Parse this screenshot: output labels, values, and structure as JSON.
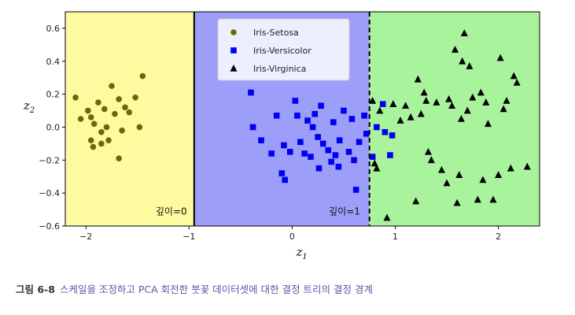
{
  "chart_data": {
    "type": "scatter",
    "xlabel": "z",
    "xlabel_sub": "1",
    "ylabel": "z",
    "ylabel_sub": "2",
    "xlim": [
      -2.2,
      2.4
    ],
    "ylim": [
      -0.6,
      0.7
    ],
    "x_ticks": [
      -2,
      -1,
      0,
      1,
      2
    ],
    "x_tick_labels": [
      "−2",
      "−1",
      "0",
      "1",
      "2"
    ],
    "y_ticks": [
      -0.6,
      -0.4,
      -0.2,
      0.0,
      0.2,
      0.4,
      0.6
    ],
    "y_tick_labels": [
      "−0.6",
      "−0.4",
      "−0.2",
      "0.0",
      "0.2",
      "0.4",
      "0.6"
    ],
    "regions": [
      {
        "x_from": -2.2,
        "x_to": -0.95,
        "color": "#fefa9f"
      },
      {
        "x_from": -0.95,
        "x_to": 0.75,
        "color": "#9d9efa"
      },
      {
        "x_from": 0.75,
        "x_to": 2.4,
        "color": "#a9f39d"
      }
    ],
    "boundaries": [
      {
        "x": -0.95,
        "style": "solid"
      },
      {
        "x": 0.75,
        "style": "dashed"
      }
    ],
    "annotations": [
      {
        "text": "깊이=0",
        "x": -1.02,
        "y": -0.53
      },
      {
        "text": "깊이=1",
        "x": 0.66,
        "y": -0.53
      }
    ],
    "legend_position": "top-center",
    "series": [
      {
        "name": "Iris-Setosa",
        "marker": "circle",
        "color": "#6b6b00",
        "points": [
          [
            -2.1,
            0.18
          ],
          [
            -2.05,
            0.05
          ],
          [
            -1.98,
            0.1
          ],
          [
            -1.95,
            0.06
          ],
          [
            -1.92,
            0.02
          ],
          [
            -1.88,
            0.15
          ],
          [
            -1.85,
            -0.03
          ],
          [
            -1.82,
            0.11
          ],
          [
            -1.8,
            0.0
          ],
          [
            -1.78,
            -0.08
          ],
          [
            -1.75,
            0.25
          ],
          [
            -1.72,
            0.08
          ],
          [
            -1.68,
            0.17
          ],
          [
            -1.65,
            -0.02
          ],
          [
            -1.62,
            0.12
          ],
          [
            -1.58,
            0.09
          ],
          [
            -1.52,
            0.18
          ],
          [
            -1.48,
            0.0
          ],
          [
            -1.45,
            0.31
          ],
          [
            -1.95,
            -0.08
          ],
          [
            -1.93,
            -0.12
          ],
          [
            -1.85,
            -0.1
          ],
          [
            -1.68,
            -0.19
          ]
        ]
      },
      {
        "name": "Iris-Versicolor",
        "marker": "square",
        "color": "#0000ee",
        "points": [
          [
            -0.4,
            0.21
          ],
          [
            -0.38,
            0.0
          ],
          [
            -0.3,
            -0.08
          ],
          [
            -0.2,
            -0.16
          ],
          [
            -0.15,
            0.07
          ],
          [
            -0.1,
            -0.28
          ],
          [
            -0.08,
            -0.11
          ],
          [
            -0.07,
            -0.32
          ],
          [
            -0.02,
            -0.15
          ],
          [
            0.03,
            0.16
          ],
          [
            0.05,
            0.07
          ],
          [
            0.08,
            -0.09
          ],
          [
            0.12,
            -0.16
          ],
          [
            0.15,
            0.04
          ],
          [
            0.18,
            -0.18
          ],
          [
            0.2,
            0.0
          ],
          [
            0.22,
            0.08
          ],
          [
            0.25,
            -0.06
          ],
          [
            0.26,
            -0.25
          ],
          [
            0.28,
            0.13
          ],
          [
            0.3,
            -0.1
          ],
          [
            0.35,
            -0.14
          ],
          [
            0.38,
            -0.21
          ],
          [
            0.4,
            0.03
          ],
          [
            0.42,
            -0.17
          ],
          [
            0.45,
            -0.24
          ],
          [
            0.46,
            -0.08
          ],
          [
            0.5,
            0.1
          ],
          [
            0.55,
            -0.15
          ],
          [
            0.58,
            0.05
          ],
          [
            0.6,
            -0.2
          ],
          [
            0.62,
            -0.38
          ],
          [
            0.65,
            -0.09
          ],
          [
            0.7,
            0.07
          ],
          [
            0.72,
            -0.04
          ],
          [
            0.78,
            -0.18
          ],
          [
            0.82,
            0.0
          ],
          [
            0.88,
            0.14
          ],
          [
            0.9,
            -0.03
          ],
          [
            0.95,
            -0.17
          ],
          [
            0.97,
            -0.05
          ]
        ]
      },
      {
        "name": "Iris-Virginica",
        "marker": "triangle",
        "color": "#000000",
        "points": [
          [
            0.78,
            0.16
          ],
          [
            0.8,
            -0.22
          ],
          [
            0.82,
            -0.25
          ],
          [
            0.85,
            0.1
          ],
          [
            0.92,
            -0.55
          ],
          [
            0.98,
            0.14
          ],
          [
            1.05,
            0.04
          ],
          [
            1.1,
            0.13
          ],
          [
            1.15,
            0.06
          ],
          [
            1.2,
            -0.45
          ],
          [
            1.22,
            0.29
          ],
          [
            1.25,
            0.08
          ],
          [
            1.28,
            0.21
          ],
          [
            1.3,
            0.16
          ],
          [
            1.32,
            -0.15
          ],
          [
            1.35,
            -0.2
          ],
          [
            1.4,
            0.15
          ],
          [
            1.45,
            -0.26
          ],
          [
            1.5,
            -0.34
          ],
          [
            1.52,
            0.17
          ],
          [
            1.55,
            0.13
          ],
          [
            1.58,
            0.47
          ],
          [
            1.6,
            -0.46
          ],
          [
            1.62,
            -0.29
          ],
          [
            1.64,
            0.05
          ],
          [
            1.65,
            0.4
          ],
          [
            1.67,
            0.57
          ],
          [
            1.7,
            0.1
          ],
          [
            1.72,
            0.37
          ],
          [
            1.75,
            0.18
          ],
          [
            1.8,
            -0.44
          ],
          [
            1.83,
            0.21
          ],
          [
            1.85,
            -0.32
          ],
          [
            1.88,
            0.15
          ],
          [
            1.9,
            0.02
          ],
          [
            1.95,
            -0.44
          ],
          [
            2.0,
            -0.29
          ],
          [
            2.02,
            0.42
          ],
          [
            2.05,
            0.11
          ],
          [
            2.08,
            0.16
          ],
          [
            2.12,
            -0.25
          ],
          [
            2.15,
            0.31
          ],
          [
            2.18,
            0.27
          ],
          [
            2.28,
            -0.24
          ]
        ]
      }
    ]
  },
  "caption": {
    "label": "그림 6-8",
    "text": "스케일을 조정하고 PCA 회전한 붓꽃 데이터셋에 대한 결정 트리의 결정 경계"
  }
}
